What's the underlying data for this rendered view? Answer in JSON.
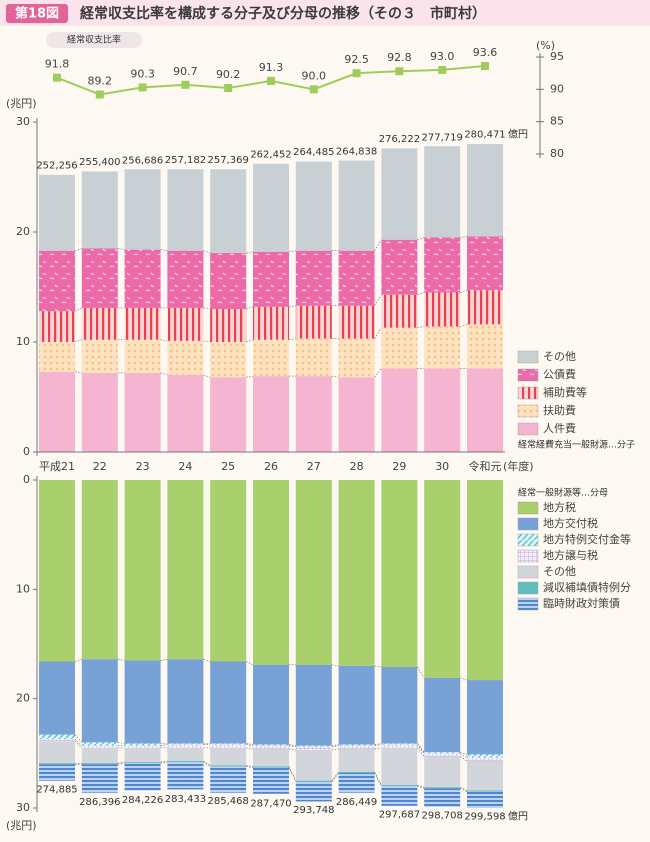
{
  "header": {
    "badge": "第18図",
    "title": "経常収支比率を構成する分子及び分母の推移（その３　市町村）"
  },
  "chart_data": [
    {
      "type": "line",
      "title": "経常収支比率",
      "y_unit": "(%)",
      "color": "#9fcc5a",
      "values": [
        91.8,
        89.2,
        90.3,
        90.7,
        90.2,
        91.3,
        90.0,
        92.5,
        92.8,
        93.0,
        93.6
      ],
      "value_labels": [
        "91.8",
        "89.2",
        "90.3",
        "90.7",
        "90.2",
        "91.3",
        "90.0",
        "92.5",
        "92.8",
        "93.0",
        "93.6"
      ],
      "ylim": [
        80,
        95
      ],
      "yticks": [
        80,
        85,
        90,
        95
      ]
    },
    {
      "type": "stacked_bar",
      "y_unit": "(兆円)",
      "x_unit": "(年度)",
      "legend_note": "経常経費充当一般財源…分子",
      "categories": [
        "平成21",
        "22",
        "23",
        "24",
        "25",
        "26",
        "27",
        "28",
        "29",
        "30",
        "令和元"
      ],
      "series": [
        {
          "name": "人件費",
          "color": "#f5b4d0",
          "values": [
            7.3,
            7.2,
            7.2,
            7.0,
            6.8,
            6.9,
            6.9,
            6.8,
            7.6,
            7.6,
            7.6
          ]
        },
        {
          "name": "扶助費",
          "color": "#f8c27e",
          "pattern": "dots",
          "values": [
            2.7,
            3.0,
            3.0,
            3.1,
            3.2,
            3.3,
            3.4,
            3.5,
            3.7,
            3.8,
            4.0
          ]
        },
        {
          "name": "補助費等",
          "color": "#e8424e",
          "pattern": "vstripes",
          "values": [
            2.8,
            2.9,
            2.9,
            3.0,
            3.0,
            3.0,
            3.0,
            3.0,
            3.0,
            3.1,
            3.1
          ]
        },
        {
          "name": "公債費",
          "color": "#ec6aa8",
          "pattern": "squiggle",
          "values": [
            5.5,
            5.4,
            5.3,
            5.2,
            5.1,
            5.0,
            5.0,
            5.0,
            5.0,
            5.0,
            4.9
          ]
        },
        {
          "name": "その他",
          "color": "#c9d0d4",
          "values": [
            6.9,
            7.0,
            7.3,
            7.4,
            7.6,
            8.0,
            8.1,
            8.2,
            8.3,
            8.3,
            8.4
          ]
        }
      ],
      "totals": {
        "unit": "億円",
        "values": [
          25.2256,
          25.54,
          25.6686,
          25.7182,
          25.7369,
          26.2452,
          26.4485,
          26.4838,
          27.6222,
          27.7719,
          28.0471
        ],
        "value_labels": [
          "252,256",
          "255,400",
          "256,686",
          "257,182",
          "257,369",
          "262,452",
          "264,485",
          "264,838",
          "276,222",
          "277,719",
          "280,471"
        ]
      },
      "ylim": [
        0,
        30
      ],
      "yticks": [
        0,
        10,
        20,
        30
      ]
    },
    {
      "type": "stacked_bar",
      "y_unit": "(兆円)",
      "y_inverted": true,
      "legend_note": "経常一般財源等…分母",
      "series": [
        {
          "name": "地方税",
          "color": "#a9d06c",
          "values": [
            16.6,
            16.4,
            16.5,
            16.4,
            16.6,
            16.9,
            16.9,
            17.0,
            17.1,
            18.1,
            18.3
          ]
        },
        {
          "name": "地方交付税",
          "color": "#78a2d6",
          "values": [
            6.7,
            7.6,
            7.6,
            7.7,
            7.5,
            7.3,
            7.4,
            7.2,
            7.0,
            6.8,
            6.8
          ]
        },
        {
          "name": "地方特例交付金等",
          "color": "#4fc3d8",
          "pattern": "diag",
          "values": [
            0.4,
            0.3,
            0.2,
            0.1,
            0.1,
            0.1,
            0.1,
            0.1,
            0.1,
            0.1,
            0.3
          ]
        },
        {
          "name": "地方譲与税",
          "color": "#b79ad6",
          "pattern": "grid",
          "values": [
            0.2,
            0.2,
            0.2,
            0.3,
            0.3,
            0.3,
            0.3,
            0.3,
            0.3,
            0.3,
            0.3
          ]
        },
        {
          "name": "その他",
          "color": "#d2d6da",
          "values": [
            2.0,
            1.4,
            1.3,
            1.2,
            1.6,
            1.6,
            2.8,
            2.1,
            3.4,
            2.8,
            2.7
          ]
        },
        {
          "name": "減収補填債特例分",
          "color": "#5fbfbf",
          "values": [
            0.1,
            0.1,
            0.1,
            0.1,
            0.1,
            0.1,
            0.1,
            0.1,
            0.1,
            0.1,
            0.1
          ]
        },
        {
          "name": "臨時財政対策債",
          "color": "#4f86cf",
          "pattern": "hstripes",
          "values": [
            1.5,
            2.6,
            2.5,
            2.5,
            2.4,
            2.4,
            1.8,
            1.8,
            1.8,
            1.7,
            1.5
          ]
        }
      ],
      "totals": {
        "unit": "億円",
        "values": [
          27.4885,
          28.6396,
          28.4226,
          28.3433,
          28.5468,
          28.747,
          29.3748,
          28.6449,
          29.7687,
          29.8708,
          29.9598
        ],
        "value_labels": [
          "274,885",
          "286,396",
          "284,226",
          "283,433",
          "285,468",
          "287,470",
          "293,748",
          "286,449",
          "297,687",
          "298,708",
          "299,598"
        ]
      },
      "ylim": [
        0,
        30
      ],
      "yticks": [
        0,
        10,
        20,
        30
      ]
    }
  ]
}
